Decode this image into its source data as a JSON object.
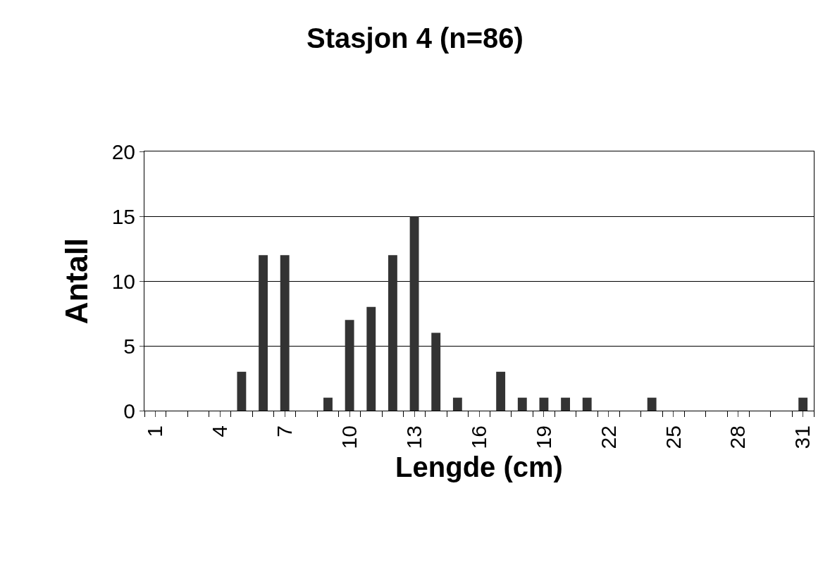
{
  "chart_data": {
    "type": "bar",
    "title": "Stasjon 4 (n=86)",
    "xlabel": "Lengde (cm)",
    "ylabel": "Antall",
    "categories": [
      "1",
      null,
      null,
      "4",
      null,
      null,
      "7",
      null,
      null,
      "10",
      null,
      null,
      "13",
      null,
      null,
      "16",
      null,
      null,
      "19",
      null,
      null,
      "22",
      null,
      null,
      "25",
      null,
      null,
      "28",
      null,
      null,
      "31"
    ],
    "values": [
      0,
      0,
      0,
      0,
      3,
      12,
      12,
      0,
      1,
      7,
      8,
      12,
      15,
      6,
      1,
      0,
      3,
      1,
      1,
      1,
      1,
      0,
      0,
      1,
      0,
      0,
      0,
      0,
      0,
      0,
      1
    ],
    "color": "#333333",
    "ylim": [
      0,
      20
    ],
    "yticks": [
      0,
      5,
      10,
      15,
      20
    ],
    "grid": "y",
    "legend": false
  }
}
